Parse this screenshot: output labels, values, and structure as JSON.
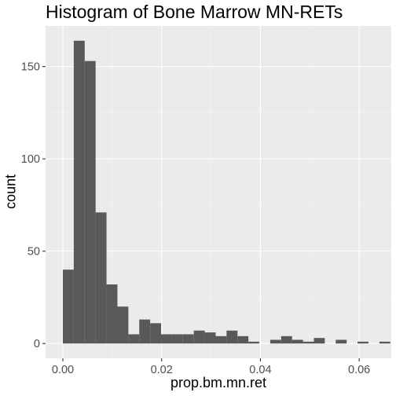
{
  "chart_data": {
    "type": "bar",
    "title": "Histogram of Bone Marrow MN-RETs",
    "xlabel": "prop.bm.mn.ret",
    "ylabel": "count",
    "xlim": [
      -0.0035,
      0.0665
    ],
    "ylim": [
      -8,
      172
    ],
    "bin_width": 0.00221,
    "bins_start": [
      0.0,
      0.00221,
      0.00442,
      0.00663,
      0.00884,
      0.01105,
      0.01326,
      0.01547,
      0.01768,
      0.01989,
      0.0221,
      0.02431,
      0.02652,
      0.02873,
      0.03094,
      0.03315,
      0.03536,
      0.03757,
      0.03978,
      0.04199,
      0.0442,
      0.04641,
      0.04862,
      0.05083,
      0.05304,
      0.05525,
      0.05746,
      0.05967,
      0.06188,
      0.06409
    ],
    "counts": [
      40,
      164,
      153,
      71,
      32,
      20,
      5,
      13,
      11,
      5,
      5,
      5,
      7,
      6,
      4,
      7,
      4,
      1,
      0,
      2,
      4,
      2,
      1,
      3,
      0,
      2,
      0,
      1,
      0,
      1
    ],
    "x_ticks": [
      0.0,
      0.02,
      0.04,
      0.06
    ],
    "x_tick_labels": [
      "0.00",
      "0.02",
      "0.04",
      "0.06"
    ],
    "y_ticks": [
      0,
      50,
      100,
      150
    ],
    "y_tick_labels": [
      "0",
      "50",
      "100",
      "150"
    ],
    "grid": true,
    "colors": {
      "panel_background": "#ebebeb",
      "grid_major": "#ffffff",
      "bar_fill": "#595959",
      "tick_text": "#4d4d4d"
    }
  }
}
